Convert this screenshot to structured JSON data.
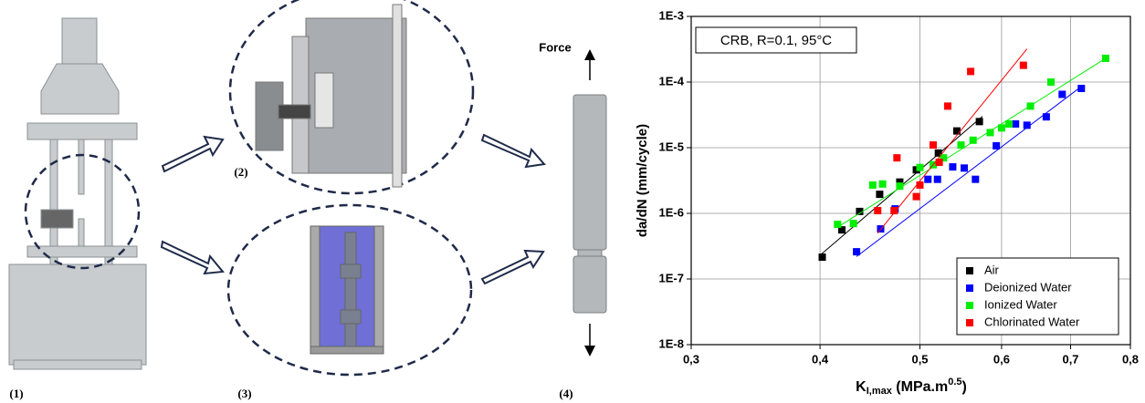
{
  "figure": {
    "labels": [
      "(1)",
      "(2)",
      "(3)",
      "(4)"
    ],
    "force_label": "Force"
  },
  "chart_data": {
    "type": "scatter",
    "annotation": "CRB, R=0.1, 95°C",
    "y_label": "da/dN (mm/cycle)",
    "x_label": {
      "main": "K",
      "sub": "I,max",
      "rest": " (MPa.m",
      "sup": "0.5",
      "end": ")"
    },
    "xlim": [
      0.3,
      0.8
    ],
    "xticks": [
      {
        "value": 0.3,
        "label": "0,3"
      },
      {
        "value": 0.4,
        "label": "0,4"
      },
      {
        "value": 0.5,
        "label": "0,5"
      },
      {
        "value": 0.6,
        "label": "0,6"
      },
      {
        "value": 0.7,
        "label": "0,7"
      },
      {
        "value": 0.8,
        "label": "0,8"
      }
    ],
    "x_log": true,
    "ylim": [
      1e-08,
      0.001
    ],
    "yticks": [
      {
        "value": 1e-08,
        "label": "1E-8"
      },
      {
        "value": 1e-07,
        "label": "1E-7"
      },
      {
        "value": 1e-06,
        "label": "1E-6"
      },
      {
        "value": 1e-05,
        "label": "1E-5"
      },
      {
        "value": 0.0001,
        "label": "1E-4"
      },
      {
        "value": 0.001,
        "label": "1E-3"
      }
    ],
    "y_log": true,
    "grid": true,
    "legend": "lower right",
    "series": [
      {
        "name": "Air",
        "color": "#000000",
        "x": [
          0.402,
          0.42,
          0.437,
          0.457,
          0.478,
          0.496,
          0.521,
          0.543,
          0.571
        ],
        "values": [
          2.15e-07,
          5.6e-07,
          1.07e-06,
          1.95e-06,
          3e-06,
          4.6e-06,
          8.3e-06,
          1.8e-05,
          2.5e-05
        ],
        "trend": {
          "x": [
            0.4,
            0.575
          ],
          "values": [
            2.3e-07,
            3e-05
          ]
        }
      },
      {
        "name": "Deionized Water",
        "color": "#0000ff",
        "x": [
          0.434,
          0.458,
          0.473,
          0.509,
          0.52,
          0.538,
          0.552,
          0.566,
          0.593,
          0.619,
          0.635,
          0.663,
          0.687,
          0.717
        ],
        "values": [
          2.6e-07,
          5.8e-07,
          1.17e-06,
          3.3e-06,
          3.3e-06,
          5.1e-06,
          4.9e-06,
          3.3e-06,
          1.07e-05,
          2.3e-05,
          2.2e-05,
          2.95e-05,
          6.5e-05,
          8e-05
        ],
        "trend": {
          "x": [
            0.434,
            0.72
          ],
          "values": [
            2.2e-07,
            9e-05
          ]
        }
      },
      {
        "name": "Ionized Water",
        "color": "#00ee00",
        "x": [
          0.416,
          0.431,
          0.45,
          0.46,
          0.478,
          0.5,
          0.515,
          0.527,
          0.548,
          0.563,
          0.585,
          0.6,
          0.61,
          0.64,
          0.67,
          0.757
        ],
        "values": [
          6.8e-07,
          7e-07,
          2.7e-06,
          2.8e-06,
          2.6e-06,
          5e-06,
          5.5e-06,
          7e-06,
          1.1e-05,
          1.3e-05,
          1.7e-05,
          2e-05,
          2.3e-05,
          4.3e-05,
          0.0001,
          0.00023
        ],
        "trend": {
          "x": [
            0.415,
            0.757
          ],
          "values": [
            6e-07,
            0.00023
          ]
        }
      },
      {
        "name": "Chlorinated Water",
        "color": "#ff0000",
        "x": [
          0.455,
          0.472,
          0.475,
          0.496,
          0.5,
          0.515,
          0.522,
          0.532,
          0.56,
          0.63
        ],
        "values": [
          1.1e-06,
          1.1e-06,
          7e-06,
          1.8e-06,
          2.7e-06,
          1.1e-05,
          6e-06,
          4.3e-05,
          0.000145,
          0.00018
        ],
        "trend": {
          "x": [
            0.455,
            0.635
          ],
          "values": [
            5e-07,
            0.00032
          ]
        }
      }
    ]
  }
}
